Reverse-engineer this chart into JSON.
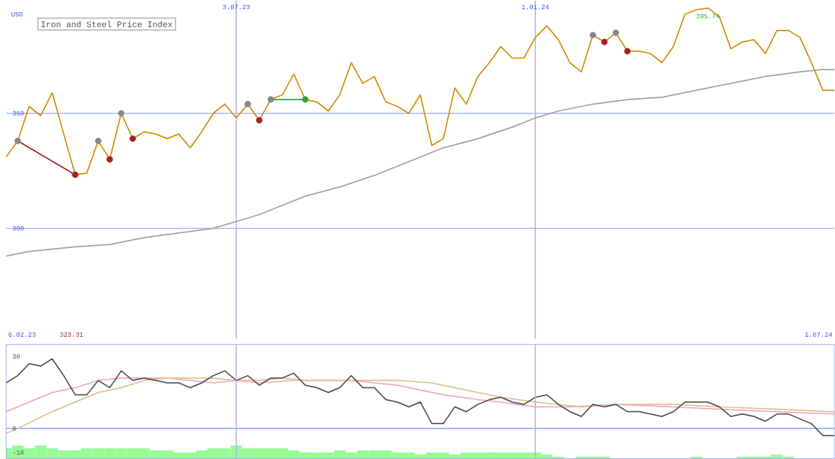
{
  "chart_data": [
    {
      "type": "line",
      "title": "Iron and Steel Price Index",
      "ylabel": "USD",
      "x": [
        "2023-02-13",
        "2023-02-20",
        "2023-02-27",
        "2023-03-06",
        "2023-03-13",
        "2023-03-20",
        "2023-03-27",
        "2023-04-03",
        "2023-04-10",
        "2023-04-17",
        "2023-04-24",
        "2023-05-01",
        "2023-05-08",
        "2023-05-15",
        "2023-05-22",
        "2023-05-29",
        "2023-06-05",
        "2023-06-12",
        "2023-06-19",
        "2023-06-26",
        "2023-07-03",
        "2023-07-10",
        "2023-07-17",
        "2023-07-24",
        "2023-07-31",
        "2023-08-07",
        "2023-08-14",
        "2023-08-21",
        "2023-08-28",
        "2023-09-04",
        "2023-09-11",
        "2023-09-18",
        "2023-09-25",
        "2023-10-02",
        "2023-10-09",
        "2023-10-16",
        "2023-10-23",
        "2023-10-30",
        "2023-11-06",
        "2023-11-13",
        "2023-11-20",
        "2023-11-27",
        "2023-12-04",
        "2023-12-11",
        "2023-12-18",
        "2023-12-25",
        "2024-01-01",
        "2024-01-08",
        "2024-01-15",
        "2024-01-22",
        "2024-01-29",
        "2024-02-05",
        "2024-02-12",
        "2024-02-19",
        "2024-02-26",
        "2024-03-04",
        "2024-03-11",
        "2024-03-18",
        "2024-03-25",
        "2024-04-01",
        "2024-04-08",
        "2024-04-15",
        "2024-04-22",
        "2024-04-29",
        "2024-05-06",
        "2024-05-13",
        "2024-05-20",
        "2024-05-27",
        "2024-06-03",
        "2024-06-10",
        "2024-06-17",
        "2024-06-24",
        "2024-07-01"
      ],
      "xlim": [
        "2023-02-13",
        "2024-07-01"
      ],
      "ylim": [
        252,
        399
      ],
      "xticks": [
        {
          "value": "2023-07-03",
          "label": "3.07.23"
        },
        {
          "value": "2024-01-01",
          "label": "1.01.24"
        }
      ],
      "yticks": [
        300,
        350
      ],
      "grid": true,
      "annotations": [
        "6.02.23",
        "323.31",
        "1.07.24",
        {
          "text": "395.74",
          "x": "2024-04-15",
          "y": 395.74
        }
      ],
      "series": [
        {
          "color": "#d08c00",
          "values": [
            331,
            338,
            353,
            349,
            359,
            341,
            323.31,
            324,
            338,
            330,
            350,
            339,
            342,
            341,
            339,
            341,
            335,
            342,
            350,
            354,
            348,
            354,
            347,
            356,
            358,
            367,
            356,
            355,
            351,
            358,
            372,
            363,
            366,
            355,
            353,
            350,
            358,
            336,
            339,
            361,
            354,
            366,
            372,
            379,
            374,
            374,
            383,
            388,
            382,
            372,
            368,
            384,
            381,
            385,
            377,
            377,
            376,
            372,
            379,
            393,
            395,
            395.74,
            392,
            378,
            381,
            382,
            376,
            386,
            386,
            383,
            372,
            360,
            360
          ]
        },
        {
          "color": "#a0a0a0",
          "x": [
            "2023-02-13",
            "2023-02-27",
            "2023-03-13",
            "2023-03-27",
            "2023-04-17",
            "2023-05-08",
            "2023-05-29",
            "2023-06-19",
            "2023-07-03",
            "2023-07-17",
            "2023-07-31",
            "2023-08-14",
            "2023-09-04",
            "2023-09-25",
            "2023-10-16",
            "2023-11-06",
            "2023-11-27",
            "2023-12-18",
            "2024-01-01",
            "2024-01-15",
            "2024-02-05",
            "2024-02-26",
            "2024-03-18",
            "2024-04-08",
            "2024-04-29",
            "2024-05-20",
            "2024-06-10",
            "2024-06-24",
            "2024-07-01"
          ],
          "values": [
            288,
            290,
            291,
            292,
            293,
            296,
            298,
            300,
            303,
            306,
            310,
            314,
            318,
            323,
            329,
            335,
            339,
            344,
            348,
            351,
            354,
            356,
            357,
            360,
            363,
            366,
            368,
            369,
            369
          ]
        },
        {
          "color": "#a02020",
          "x": [
            "2023-02-20",
            "2023-03-27"
          ],
          "values": [
            338,
            323.31
          ]
        },
        {
          "color": "#30a030",
          "x": [
            "2023-07-24",
            "2023-08-14"
          ],
          "values": [
            356,
            356
          ]
        },
        {
          "type": "scatter",
          "color": "#888888",
          "x": [
            "2023-02-20",
            "2023-04-10",
            "2023-04-24",
            "2023-07-10",
            "2023-07-24",
            "2024-02-05",
            "2024-02-19"
          ],
          "values": [
            338,
            338,
            350,
            354,
            356,
            384,
            385
          ]
        },
        {
          "type": "scatter",
          "color": "#a52020",
          "x": [
            "2023-03-27",
            "2023-04-17",
            "2023-05-01",
            "2023-07-17",
            "2024-02-12",
            "2024-02-26"
          ],
          "values": [
            323.31,
            330,
            339,
            347,
            381,
            377
          ]
        },
        {
          "type": "scatter",
          "color": "#30a030",
          "x": [
            "2023-08-14"
          ],
          "values": [
            356
          ]
        }
      ]
    },
    {
      "type": "line",
      "x": [
        "2023-02-13",
        "2023-02-20",
        "2023-02-27",
        "2023-03-06",
        "2023-03-13",
        "2023-03-20",
        "2023-03-27",
        "2023-04-03",
        "2023-04-10",
        "2023-04-17",
        "2023-04-24",
        "2023-05-01",
        "2023-05-08",
        "2023-05-15",
        "2023-05-22",
        "2023-05-29",
        "2023-06-05",
        "2023-06-12",
        "2023-06-19",
        "2023-06-26",
        "2023-07-03",
        "2023-07-10",
        "2023-07-17",
        "2023-07-24",
        "2023-07-31",
        "2023-08-07",
        "2023-08-14",
        "2023-08-21",
        "2023-08-28",
        "2023-09-04",
        "2023-09-11",
        "2023-09-18",
        "2023-09-25",
        "2023-10-02",
        "2023-10-09",
        "2023-10-16",
        "2023-10-23",
        "2023-10-30",
        "2023-11-06",
        "2023-11-13",
        "2023-11-20",
        "2023-11-27",
        "2023-12-04",
        "2023-12-11",
        "2023-12-18",
        "2023-12-25",
        "2024-01-01",
        "2024-01-08",
        "2024-01-15",
        "2024-01-22",
        "2024-01-29",
        "2024-02-05",
        "2024-02-12",
        "2024-02-19",
        "2024-02-26",
        "2024-03-04",
        "2024-03-11",
        "2024-03-18",
        "2024-03-25",
        "2024-04-01",
        "2024-04-08",
        "2024-04-15",
        "2024-04-22",
        "2024-04-29",
        "2024-05-06",
        "2024-05-13",
        "2024-05-20",
        "2024-05-27",
        "2024-06-03",
        "2024-06-10",
        "2024-06-17",
        "2024-06-24",
        "2024-07-01"
      ],
      "xlim": [
        "2023-02-13",
        "2024-07-01"
      ],
      "ylim": [
        -12.6,
        35
      ],
      "xticks": [
        {
          "value": "2023-07-03",
          "label": null
        },
        {
          "value": "2024-01-01",
          "label": null
        }
      ],
      "yticks": [
        -10,
        0,
        30
      ],
      "grid": "x",
      "tick_labels": "y",
      "ref_lines": [
        {
          "axis": "y",
          "value": 0,
          "color": "#8c9cf0"
        }
      ],
      "series": [
        {
          "type": "bar",
          "color": "#98fb98",
          "values": [
            4.4,
            5.5,
            4.4,
            5.5,
            4.4,
            3.5,
            3.5,
            4.4,
            4.4,
            4.4,
            4.4,
            4.4,
            4.4,
            3.5,
            3.5,
            2.6,
            2.6,
            3.5,
            4.4,
            4.4,
            5.5,
            4.4,
            4.4,
            4.4,
            4.4,
            3.5,
            2.6,
            2.6,
            2.6,
            3.5,
            2.6,
            3.5,
            3.5,
            3.5,
            2.6,
            2.6,
            1.7,
            2.6,
            2.6,
            1.7,
            2.6,
            2.6,
            2.6,
            2.6,
            2.6,
            2.6,
            2.6,
            1.7,
            0.8,
            null,
            0.8,
            0.8,
            0.8,
            null,
            null,
            null,
            null,
            null,
            null,
            null,
            0.8,
            null,
            null,
            null,
            0.8,
            0.8,
            0.8,
            1.7,
            0.8,
            null,
            null,
            null,
            null
          ],
          "base": [
            -12.6,
            -12.6,
            -12.6,
            -12.6,
            -12.6,
            -12.6,
            -12.6,
            -12.6,
            -12.6,
            -12.6,
            -12.6,
            -12.6,
            -12.6,
            -12.6,
            -12.6,
            -12.6,
            -12.6,
            -12.6,
            -12.6,
            -12.6,
            -12.6,
            -12.6,
            -12.6,
            -12.6,
            -12.6,
            -12.6,
            -12.6,
            -12.6,
            -12.6,
            -12.6,
            -12.6,
            -12.6,
            -12.6,
            -12.6,
            -12.6,
            -12.6,
            -12.6,
            -12.6,
            -12.6,
            -12.6,
            -12.6,
            -12.6,
            -12.6,
            -12.6,
            -12.6,
            -12.6,
            -12.6,
            -12.6,
            -12.6,
            null,
            -12.6,
            -12.6,
            -12.6,
            null,
            null,
            null,
            null,
            null,
            null,
            null,
            -12.6,
            null,
            null,
            null,
            -12.6,
            -12.6,
            -12.6,
            -12.6,
            -12.6,
            null,
            null,
            null,
            null
          ]
        },
        {
          "color": "#f4a8c0",
          "x": [
            "2023-02-13",
            "2023-02-27",
            "2023-03-13",
            "2023-03-27",
            "2023-04-10",
            "2023-04-24",
            "2023-05-08",
            "2023-05-22",
            "2023-06-05",
            "2023-06-19",
            "2023-07-03",
            "2023-07-17",
            "2023-07-31",
            "2023-08-14",
            "2023-08-28",
            "2023-09-11",
            "2023-09-25",
            "2023-10-09",
            "2023-10-23",
            "2023-11-06",
            "2023-11-27",
            "2023-12-11",
            "2024-01-01",
            "2024-01-22",
            "2024-02-19",
            "2024-03-25",
            "2024-04-22",
            "2024-05-27",
            "2024-07-01"
          ],
          "values": [
            7,
            11,
            15,
            17,
            20,
            21,
            21,
            21,
            20,
            19,
            20,
            20,
            21,
            20,
            20,
            20,
            19,
            18,
            16,
            14,
            12,
            11,
            9,
            9,
            10,
            9,
            8,
            7,
            6
          ]
        },
        {
          "color": "#e0c090",
          "x": [
            "2023-02-13",
            "2023-02-20",
            "2023-03-13",
            "2023-03-27",
            "2023-04-10",
            "2023-04-24",
            "2023-05-08",
            "2023-05-22",
            "2023-06-19",
            "2023-07-03",
            "2023-07-17",
            "2023-08-07",
            "2023-09-11",
            "2023-10-09",
            "2023-10-30",
            "2023-11-20",
            "2023-12-11",
            "2024-01-01",
            "2024-01-29",
            "2024-02-19",
            "2024-03-25",
            "2024-04-22",
            "2024-05-27",
            "2024-07-01"
          ],
          "values": [
            -2,
            0,
            7,
            11,
            15,
            17,
            20,
            21,
            21,
            20,
            19,
            20,
            20,
            20,
            19,
            16,
            13,
            11,
            9,
            10,
            10,
            9,
            8,
            7
          ]
        },
        {
          "color": "#555555",
          "values": [
            19,
            22,
            27,
            26,
            29,
            22,
            14,
            14,
            20,
            17,
            24,
            20,
            21,
            20,
            19,
            19,
            17,
            19,
            22,
            24,
            20,
            22,
            18,
            21,
            21,
            23,
            18,
            17,
            15,
            17,
            22,
            17,
            17,
            12,
            11,
            9,
            11,
            2,
            2,
            9,
            7,
            10,
            12,
            13,
            11,
            10,
            13,
            14,
            10,
            7,
            5,
            10,
            9,
            10,
            7,
            7,
            6,
            5,
            7,
            11,
            11,
            11,
            9,
            5,
            6,
            5,
            3,
            6,
            6,
            4,
            2,
            -3,
            -3
          ]
        }
      ]
    }
  ]
}
